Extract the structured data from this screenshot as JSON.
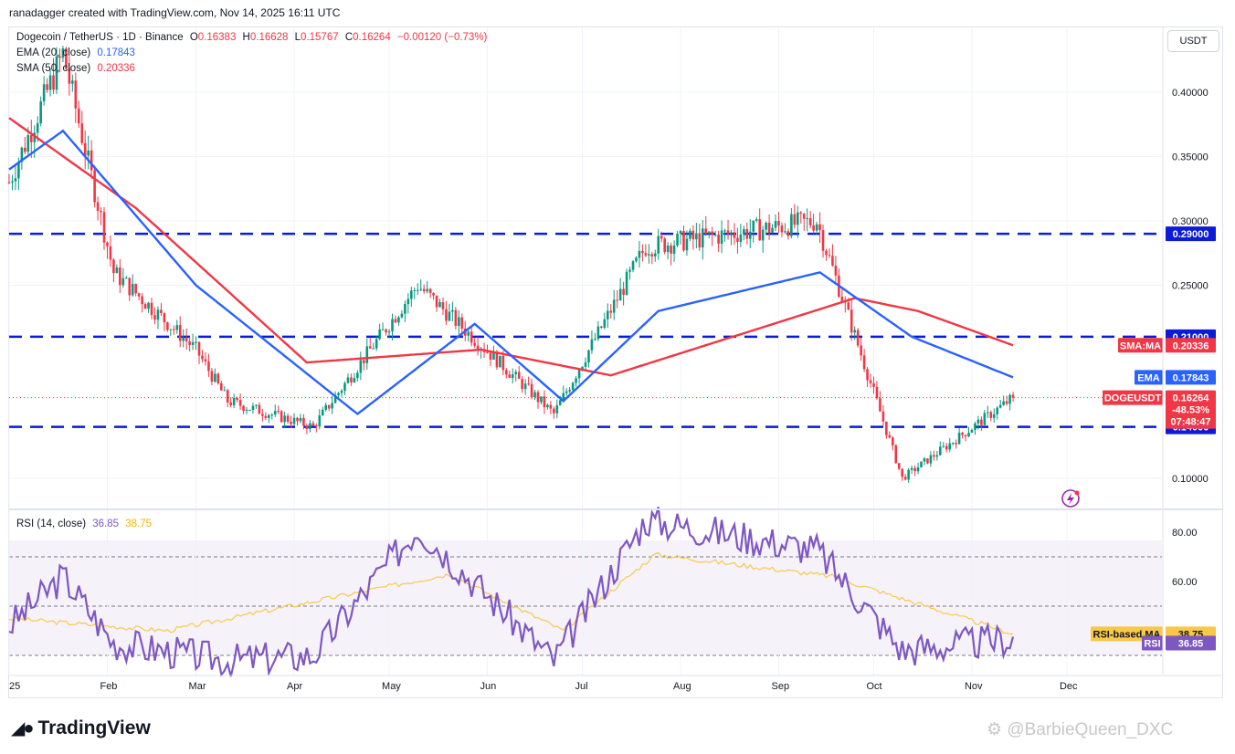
{
  "header": {
    "created_by": "ranadagger created with TradingView.com, Nov 14, 2025 16:11 UTC"
  },
  "legend": {
    "symbol": "Dogecoin / TetherUS · 1D · Binance",
    "o_label": "O",
    "o": "0.16383",
    "h_label": "H",
    "h": "0.16628",
    "l_label": "L",
    "l": "0.15767",
    "c_label": "C",
    "c": "0.16264",
    "change": "−0.00120 (−0.73%)",
    "ema_label": "EMA (20, close)",
    "ema_value": "0.17843",
    "sma_label": "SMA (50, close)",
    "sma_value": "0.20336"
  },
  "currency": "USDT",
  "rsi_legend": {
    "label": "RSI (14, close)",
    "rsi_value": "36.85",
    "ma_value": "38.75"
  },
  "tags": {
    "level_290": "0.29000",
    "level_210": "0.21000",
    "level_140": "0.14000",
    "sma_name": "SMA:MA",
    "sma_value": "0.20336",
    "ema_name": "EMA",
    "ema_value": "0.17843",
    "price_name": "DOGEUSDT",
    "price_value": "0.16264",
    "price_change": "-48.53%",
    "countdown": "07:48:47",
    "rsi_ma_name": "RSI-based MA",
    "rsi_ma_value": "38.75",
    "rsi_name": "RSI",
    "rsi_value": "36.85"
  },
  "footer": {
    "brand": "TradingView",
    "watermark": "@BarbieQueen_DXC"
  },
  "colors": {
    "up": "#089981",
    "down": "#f23645",
    "ema": "#2962ff",
    "sma": "#f23645",
    "rsi": "#7e57c2",
    "rsi_ma": "#f7c948",
    "levels": "#0c1bd6"
  },
  "chart_data": [
    {
      "type": "candlestick",
      "title": "Dogecoin / TetherUS · 1D · Binance",
      "x_ticks": [
        "25",
        "Feb",
        "Mar",
        "Apr",
        "May",
        "Jun",
        "Jul",
        "Aug",
        "Sep",
        "Oct",
        "Nov",
        "Dec"
      ],
      "y_ticks": [
        "0.40000",
        "0.35000",
        "0.30000",
        "0.25000",
        "0.10000"
      ],
      "ylim": [
        0.08,
        0.45
      ],
      "x_range": [
        "2025-01-01",
        "2025-12-31"
      ],
      "series_key_points": {
        "price": [
          [
            "2025-01-01",
            0.33
          ],
          [
            "2025-01-18",
            0.43
          ],
          [
            "2025-02-03",
            0.26
          ],
          [
            "2025-03-01",
            0.2
          ],
          [
            "2025-03-11",
            0.16
          ],
          [
            "2025-04-07",
            0.14
          ],
          [
            "2025-05-10",
            0.25
          ],
          [
            "2025-06-22",
            0.15
          ],
          [
            "2025-07-21",
            0.28
          ],
          [
            "2025-09-13",
            0.3
          ],
          [
            "2025-10-10",
            0.1
          ],
          [
            "2025-11-14",
            0.16264
          ]
        ],
        "ema20": [
          [
            "2025-01-01",
            0.34
          ],
          [
            "2025-01-18",
            0.37
          ],
          [
            "2025-03-01",
            0.25
          ],
          [
            "2025-04-21",
            0.15
          ],
          [
            "2025-05-28",
            0.22
          ],
          [
            "2025-06-25",
            0.16
          ],
          [
            "2025-07-25",
            0.23
          ],
          [
            "2025-09-14",
            0.26
          ],
          [
            "2025-10-13",
            0.21
          ],
          [
            "2025-11-14",
            0.17843
          ]
        ],
        "sma50": [
          [
            "2025-01-01",
            0.38
          ],
          [
            "2025-02-10",
            0.31
          ],
          [
            "2025-04-05",
            0.19
          ],
          [
            "2025-05-30",
            0.2
          ],
          [
            "2025-07-10",
            0.18
          ],
          [
            "2025-09-25",
            0.24
          ],
          [
            "2025-10-15",
            0.23
          ],
          [
            "2025-11-14",
            0.20336
          ]
        ]
      },
      "horizontal_levels": [
        0.29,
        0.21,
        0.14
      ],
      "last_price": 0.16264,
      "last_change_pct": -48.53
    },
    {
      "type": "line",
      "title": "RSI (14, close)",
      "y_ticks": [
        "80.00",
        "60.00"
      ],
      "ylim": [
        20,
        90
      ],
      "band": [
        30,
        70
      ],
      "mid": 50,
      "series_key_points": {
        "rsi": [
          [
            "2025-01-01",
            42
          ],
          [
            "2025-01-18",
            62
          ],
          [
            "2025-02-03",
            35
          ],
          [
            "2025-03-11",
            28
          ],
          [
            "2025-04-07",
            30
          ],
          [
            "2025-05-10",
            82
          ],
          [
            "2025-06-22",
            28
          ],
          [
            "2025-07-21",
            85
          ],
          [
            "2025-09-13",
            73
          ],
          [
            "2025-10-10",
            32
          ],
          [
            "2025-11-14",
            36.85
          ]
        ],
        "rsi_ma": [
          [
            "2025-01-01",
            45
          ],
          [
            "2025-02-20",
            40
          ],
          [
            "2025-05-20",
            63
          ],
          [
            "2025-06-25",
            40
          ],
          [
            "2025-07-24",
            71
          ],
          [
            "2025-09-18",
            62
          ],
          [
            "2025-11-14",
            38.75
          ]
        ]
      }
    }
  ]
}
